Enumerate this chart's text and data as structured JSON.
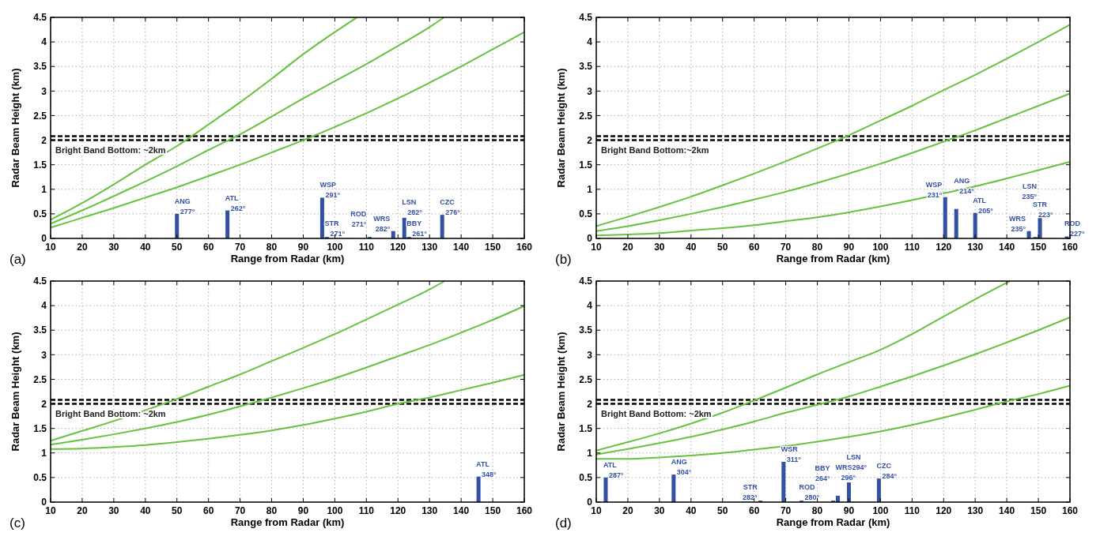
{
  "chart_data": [
    {
      "type": "line",
      "xlabel": "Range from Radar (km)",
      "ylabel": "Radar Beam Height (km)",
      "xlim": [
        10,
        160
      ],
      "xticks": [
        10,
        20,
        30,
        40,
        50,
        60,
        70,
        80,
        90,
        100,
        110,
        120,
        130,
        140,
        150,
        160
      ],
      "ylim": [
        0,
        4.5
      ],
      "yticks": [
        0,
        0.5,
        1,
        1.5,
        2,
        2.5,
        3,
        3.5,
        4,
        4.5
      ],
      "grid": true,
      "marker": "none",
      "series": [
        {
          "color": "#66c23f",
          "x": [
            10,
            20,
            30,
            40,
            50,
            60,
            70,
            80,
            90,
            100,
            107
          ],
          "values": [
            0.38,
            0.72,
            1.1,
            1.5,
            1.88,
            2.32,
            2.77,
            3.25,
            3.75,
            4.2,
            4.5
          ]
        },
        {
          "color": "#66c23f",
          "x": [
            10,
            20,
            30,
            40,
            50,
            60,
            70,
            80,
            90,
            100,
            110,
            120,
            130,
            134.6
          ],
          "values": [
            0.3,
            0.57,
            0.86,
            1.16,
            1.47,
            1.8,
            2.12,
            2.48,
            2.85,
            3.2,
            3.55,
            3.92,
            4.3,
            4.5
          ]
        },
        {
          "color": "#66c23f",
          "x": [
            10,
            20,
            30,
            40,
            50,
            60,
            70,
            80,
            90,
            100,
            110,
            120,
            130,
            140,
            150,
            160
          ],
          "values": [
            0.22,
            0.42,
            0.62,
            0.83,
            1.04,
            1.27,
            1.5,
            1.75,
            2.0,
            2.27,
            2.55,
            2.85,
            3.17,
            3.5,
            3.85,
            4.2
          ]
        },
        {
          "type": "bar",
          "color": "#3351a3",
          "x": [
            50,
            66,
            96,
            97.5,
            111,
            118.5,
            122,
            123.5,
            134
          ],
          "values": [
            0.5,
            0.57,
            0.83,
            0.03,
            0.03,
            0.15,
            0.42,
            0.03,
            0.48
          ]
        }
      ],
      "ref_lines": [
        {
          "axis": "y",
          "value": 2.0,
          "label": "Bright Band Bottom: ~2km",
          "color": "#000000",
          "line_style": "dashed"
        },
        {
          "axis": "y",
          "value": 2.08,
          "color": "#000000",
          "line_style": "dashed"
        }
      ],
      "annotations": [
        "(a)",
        {
          "text": "ANG 277°",
          "x": 50,
          "y": 0.5
        },
        {
          "text": "ATL 262°",
          "x": 66,
          "y": 0.57
        },
        {
          "text": "WSP 291°",
          "x": 96,
          "y": 0.83
        },
        {
          "text": "STR 271°",
          "x": 97.5,
          "y": 0.03
        },
        {
          "text": "ROD 271°",
          "x": 111,
          "y": 0.03
        },
        {
          "text": "WRS 282°",
          "x": 118.5,
          "y": 0.15
        },
        {
          "text": "LSN 282°",
          "x": 122,
          "y": 0.42
        },
        {
          "text": "BBY 261°",
          "x": 123.5,
          "y": 0.03
        },
        {
          "text": "CZC 276°",
          "x": 134,
          "y": 0.48
        }
      ]
    },
    {
      "type": "line",
      "xlabel": "Range from Radar (km)",
      "ylabel": "Radar Beam Height (km)",
      "xlim": [
        10,
        160
      ],
      "xticks": [
        10,
        20,
        30,
        40,
        50,
        60,
        70,
        80,
        90,
        100,
        110,
        120,
        130,
        140,
        150,
        160
      ],
      "ylim": [
        0,
        4.5
      ],
      "yticks": [
        0,
        0.5,
        1,
        1.5,
        2,
        2.5,
        3,
        3.5,
        4,
        4.5
      ],
      "grid": true,
      "marker": "none",
      "series": [
        {
          "color": "#66c23f",
          "x": [
            10,
            20,
            30,
            40,
            50,
            60,
            70,
            80,
            90,
            100,
            110,
            120,
            130,
            140,
            150,
            160
          ],
          "values": [
            0.25,
            0.44,
            0.64,
            0.85,
            1.08,
            1.32,
            1.57,
            1.83,
            2.1,
            2.4,
            2.7,
            3.02,
            3.33,
            3.66,
            4.0,
            4.35
          ]
        },
        {
          "color": "#66c23f",
          "x": [
            10,
            20,
            30,
            40,
            50,
            60,
            70,
            80,
            90,
            100,
            110,
            120,
            130,
            140,
            150,
            160
          ],
          "values": [
            0.15,
            0.25,
            0.37,
            0.5,
            0.64,
            0.79,
            0.95,
            1.13,
            1.32,
            1.52,
            1.74,
            1.97,
            2.2,
            2.45,
            2.7,
            2.95
          ]
        },
        {
          "color": "#66c23f",
          "x": [
            10,
            20,
            30,
            40,
            50,
            60,
            70,
            80,
            90,
            100,
            110,
            120,
            130,
            140,
            150,
            160
          ],
          "values": [
            0.06,
            0.08,
            0.11,
            0.16,
            0.21,
            0.27,
            0.35,
            0.43,
            0.53,
            0.65,
            0.78,
            0.92,
            1.06,
            1.22,
            1.39,
            1.56
          ]
        },
        {
          "type": "bar",
          "color": "#3351a3",
          "x": [
            120.5,
            124,
            130,
            147,
            149,
            150.5,
            159
          ],
          "values": [
            0.84,
            0.6,
            0.52,
            0.15,
            0.03,
            0.42,
            0.04
          ]
        }
      ],
      "ref_lines": [
        {
          "axis": "y",
          "value": 2.0,
          "label": "Bright Band Bottom:~2km",
          "color": "#000000",
          "line_style": "dashed"
        },
        {
          "axis": "y",
          "value": 2.08,
          "color": "#000000",
          "line_style": "dashed"
        }
      ],
      "annotations": [
        "(b)",
        {
          "text": "WSP 231°",
          "x": 120.5,
          "y": 0.84
        },
        {
          "text": "ANG 214°",
          "x": 124,
          "y": 0.6
        },
        {
          "text": "ATL 205°",
          "x": 130,
          "y": 0.52
        },
        {
          "text": "WRS 235°",
          "x": 147,
          "y": 0.15
        },
        {
          "text": "STR 223°",
          "x": 149,
          "y": 0.03
        },
        {
          "text": "LSN 235°",
          "x": 150.5,
          "y": 0.42
        },
        {
          "text": "ROD 227°",
          "x": 159,
          "y": 0.04
        }
      ]
    },
    {
      "type": "line",
      "xlabel": "Range from Radar (km)",
      "ylabel": "Radar Beam Height (km)",
      "xlim": [
        10,
        160
      ],
      "xticks": [
        10,
        20,
        30,
        40,
        50,
        60,
        70,
        80,
        90,
        100,
        110,
        120,
        130,
        140,
        150,
        160
      ],
      "ylim": [
        0,
        4.5
      ],
      "yticks": [
        0,
        0.5,
        1,
        1.5,
        2,
        2.5,
        3,
        3.5,
        4,
        4.5
      ],
      "grid": true,
      "marker": "none",
      "series": [
        {
          "color": "#66c23f",
          "x": [
            10,
            20,
            30,
            40,
            50,
            60,
            70,
            80,
            90,
            100,
            110,
            120,
            130,
            134.8
          ],
          "values": [
            1.25,
            1.45,
            1.65,
            1.87,
            2.1,
            2.35,
            2.6,
            2.87,
            3.14,
            3.42,
            3.72,
            4.02,
            4.33,
            4.5
          ]
        },
        {
          "color": "#66c23f",
          "x": [
            10,
            20,
            30,
            40,
            50,
            60,
            70,
            80,
            90,
            100,
            110,
            120,
            130,
            140,
            150,
            160
          ],
          "values": [
            1.17,
            1.27,
            1.38,
            1.5,
            1.63,
            1.78,
            1.95,
            2.13,
            2.32,
            2.52,
            2.74,
            2.97,
            3.2,
            3.45,
            3.71,
            3.99
          ]
        },
        {
          "color": "#66c23f",
          "x": [
            10,
            20,
            30,
            40,
            50,
            60,
            70,
            80,
            90,
            100,
            110,
            120,
            130,
            140,
            150,
            160
          ],
          "values": [
            1.08,
            1.09,
            1.12,
            1.16,
            1.22,
            1.29,
            1.37,
            1.46,
            1.57,
            1.7,
            1.84,
            2.0,
            2.13,
            2.28,
            2.43,
            2.59
          ]
        },
        {
          "type": "bar",
          "color": "#3351a3",
          "x": [
            145.5
          ],
          "values": [
            0.52
          ]
        }
      ],
      "ref_lines": [
        {
          "axis": "y",
          "value": 2.0,
          "label": "Bright Band Bottom: ~2km",
          "color": "#000000",
          "line_style": "dashed"
        },
        {
          "axis": "y",
          "value": 2.08,
          "color": "#000000",
          "line_style": "dashed"
        }
      ],
      "annotations": [
        "(c)",
        {
          "text": "ATL 348°",
          "x": 145.5,
          "y": 0.52
        }
      ]
    },
    {
      "type": "line",
      "xlabel": "Range from Radar (km)",
      "ylabel": "Radar Beam Height (km)",
      "xlim": [
        10,
        160
      ],
      "xticks": [
        10,
        20,
        30,
        40,
        50,
        60,
        70,
        80,
        90,
        100,
        110,
        120,
        130,
        140,
        150,
        160
      ],
      "ylim": [
        0,
        4.5
      ],
      "yticks": [
        0,
        0.5,
        1,
        1.5,
        2,
        2.5,
        3,
        3.5,
        4,
        4.5
      ],
      "grid": true,
      "marker": "none",
      "series": [
        {
          "color": "#66c23f",
          "x": [
            10,
            20,
            30,
            40,
            50,
            60,
            70,
            80,
            90,
            100,
            110,
            120,
            130,
            141
          ],
          "values": [
            1.05,
            1.22,
            1.4,
            1.6,
            1.82,
            2.07,
            2.33,
            2.6,
            2.85,
            3.1,
            3.42,
            3.78,
            4.13,
            4.5
          ]
        },
        {
          "color": "#66c23f",
          "x": [
            10,
            20,
            30,
            40,
            50,
            60,
            70,
            80,
            90,
            100,
            110,
            120,
            130,
            140,
            150,
            160
          ],
          "values": [
            0.97,
            1.08,
            1.2,
            1.33,
            1.48,
            1.64,
            1.82,
            1.98,
            2.15,
            2.35,
            2.56,
            2.78,
            3.01,
            3.25,
            3.5,
            3.76
          ]
        },
        {
          "color": "#66c23f",
          "x": [
            10,
            20,
            30,
            40,
            50,
            60,
            70,
            80,
            90,
            100,
            110,
            120,
            130,
            140,
            150,
            160
          ],
          "values": [
            0.88,
            0.88,
            0.91,
            0.95,
            1.0,
            1.07,
            1.14,
            1.23,
            1.33,
            1.44,
            1.57,
            1.72,
            1.88,
            2.05,
            2.2,
            2.37
          ]
        },
        {
          "type": "bar",
          "color": "#3351a3",
          "x": [
            13,
            34.5,
            62,
            69.3,
            75,
            85,
            86.5,
            90,
            99.5
          ],
          "values": [
            0.5,
            0.56,
            0.03,
            0.82,
            0.03,
            0.03,
            0.13,
            0.4,
            0.48
          ]
        }
      ],
      "ref_lines": [
        {
          "axis": "y",
          "value": 2.0,
          "label": "Bright Band Bottom: ~2km",
          "color": "#000000",
          "line_style": "dashed"
        },
        {
          "axis": "y",
          "value": 2.08,
          "color": "#000000",
          "line_style": "dashed"
        }
      ],
      "annotations": [
        "(d)",
        {
          "text": "ATL 287°",
          "x": 13,
          "y": 0.5
        },
        {
          "text": "ANG 304°",
          "x": 34.5,
          "y": 0.56
        },
        {
          "text": "STR 282°",
          "x": 62,
          "y": 0.03
        },
        {
          "text": "WSR 311°",
          "x": 69.3,
          "y": 0.82
        },
        {
          "text": "ROD 280°",
          "x": 75,
          "y": 0.03
        },
        {
          "text": "BBY 264°",
          "x": 85,
          "y": 0.03
        },
        {
          "text": "WRS 296°",
          "x": 86.5,
          "y": 0.13
        },
        {
          "text": "LSN 294°",
          "x": 90,
          "y": 0.4
        },
        {
          "text": "CZC 284°",
          "x": 99.5,
          "y": 0.48
        }
      ]
    }
  ]
}
